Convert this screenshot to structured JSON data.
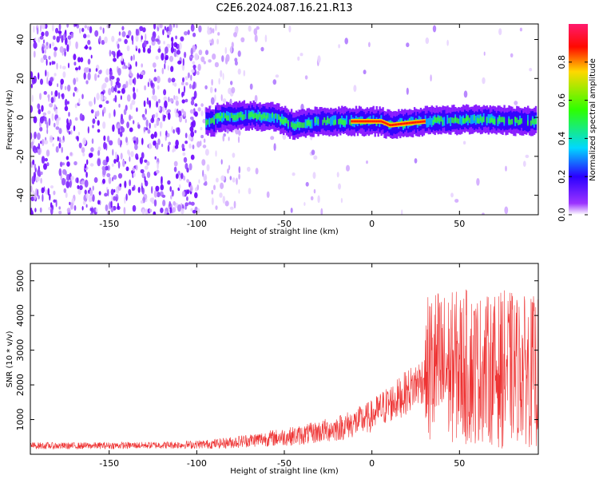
{
  "figure": {
    "title": "C2E6.2024.087.16.21.R13"
  },
  "chart_data": [
    {
      "type": "heatmap",
      "xlabel": "Height of straight line (km)",
      "ylabel": "Frequency (Hz)",
      "xlim": [
        -195,
        95
      ],
      "ylim": [
        -50,
        48
      ],
      "xticks": [
        -150,
        -100,
        -50,
        0,
        50
      ],
      "yticks": [
        -40,
        -20,
        0,
        20,
        40
      ],
      "colorbar": {
        "label": "Normalized spectral amplitude",
        "range": [
          0,
          1
        ],
        "ticks": [
          "0.0",
          "0.2",
          "0.4",
          "0.6",
          "0.8"
        ],
        "colormap": [
          "#ff1a66",
          "#ff0000",
          "#ffcc00",
          "#33ff00",
          "#00e6ff",
          "#0022ff",
          "#7700ff",
          "#ffffff"
        ]
      },
      "center_frequency": [
        {
          "x": -90,
          "y": 0
        },
        {
          "x": -70,
          "y": 1
        },
        {
          "x": -55,
          "y": 0
        },
        {
          "x": -45,
          "y": -4
        },
        {
          "x": -30,
          "y": -2
        },
        {
          "x": -10,
          "y": -2
        },
        {
          "x": 5,
          "y": -2
        },
        {
          "x": 10,
          "y": -4
        },
        {
          "x": 30,
          "y": -2
        },
        {
          "x": 60,
          "y": -1
        },
        {
          "x": 92,
          "y": -2
        }
      ],
      "grid": false
    },
    {
      "type": "line",
      "xlabel": "Height of straight line (km)",
      "ylabel": "SNR (10 * v/v)",
      "xlim": [
        -195,
        95
      ],
      "ylim": [
        0,
        5500
      ],
      "xticks": [
        -150,
        -100,
        -50,
        0,
        50
      ],
      "yticks": [
        1000,
        2000,
        3000,
        4000,
        5000
      ],
      "line_color": "#ee3333",
      "series": [
        {
          "x": [
            -195,
            -175,
            -150,
            -125,
            -100,
            -90,
            -80,
            -70,
            -60,
            -50,
            -40,
            -30,
            -20,
            -10,
            0,
            5,
            10,
            15,
            20,
            25,
            30,
            32,
            35,
            40,
            45,
            50,
            55,
            60,
            65,
            70,
            75,
            80,
            85,
            90,
            95
          ],
          "values": [
            250,
            240,
            250,
            260,
            280,
            300,
            340,
            400,
            450,
            500,
            550,
            650,
            750,
            900,
            1100,
            1300,
            1450,
            1600,
            1800,
            2000,
            2200,
            2400,
            2500,
            2450,
            2500,
            2550,
            2500,
            2450,
            2500,
            2400,
            2450,
            2500,
            2450,
            2400,
            2350
          ],
          "spread": [
            100,
            100,
            100,
            100,
            120,
            140,
            170,
            200,
            230,
            260,
            290,
            330,
            380,
            420,
            470,
            520,
            560,
            600,
            640,
            680,
            720,
            2300,
            2400,
            2300,
            2200,
            2200,
            2300,
            2200,
            2100,
            2200,
            2300,
            2200,
            2100,
            2200,
            2200
          ]
        }
      ],
      "grid": false
    }
  ]
}
